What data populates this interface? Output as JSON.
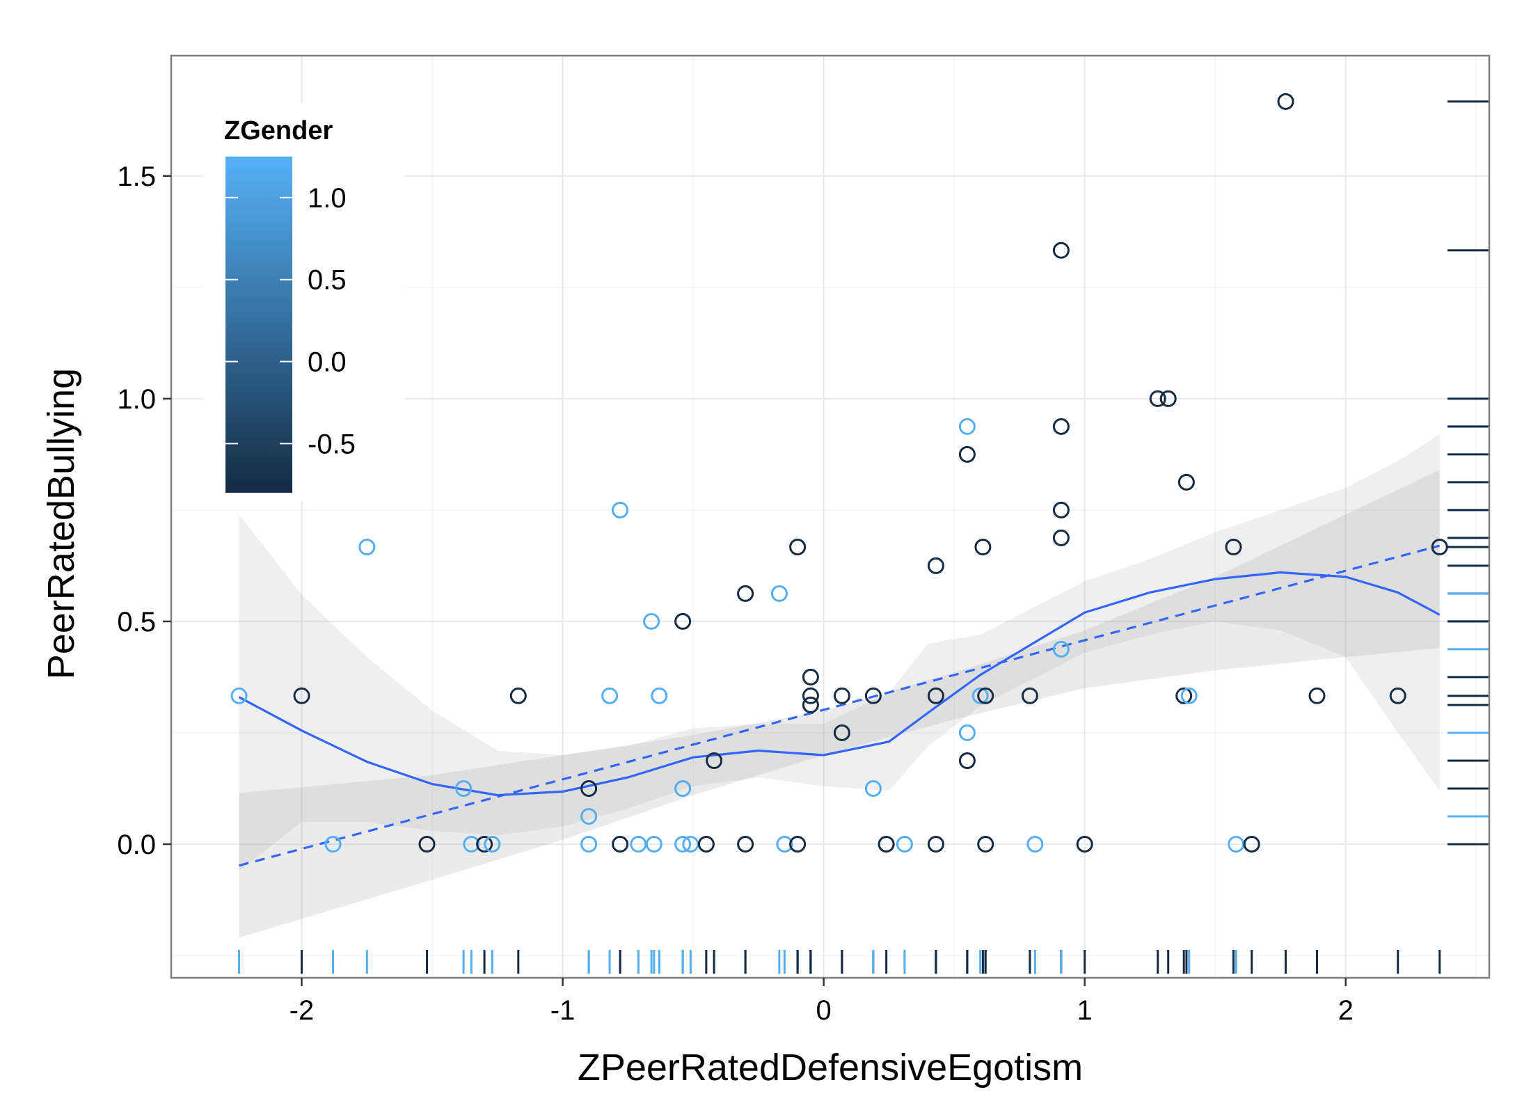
{
  "chart_data": {
    "type": "scatter",
    "title": "",
    "xlabel": "ZPeerRatedDefensiveEgotism",
    "ylabel": "PeerRatedBullying",
    "xlim": [
      -2.5,
      2.55
    ],
    "ylim": [
      -0.3,
      1.77
    ],
    "x_ticks": [
      -2,
      -1,
      0,
      1,
      2
    ],
    "x_tick_labels": [
      "-2",
      "-1",
      "0",
      "1",
      "2"
    ],
    "y_ticks": [
      0.0,
      0.5,
      1.0,
      1.5
    ],
    "y_tick_labels": [
      "0.0",
      "0.5",
      "1.0",
      "1.5"
    ],
    "grid": true,
    "legend": {
      "title": "ZGender",
      "placement": "top-left",
      "min": -0.8,
      "max": 1.25,
      "ticks": [
        1.0,
        0.5,
        0.0,
        -0.5
      ],
      "tick_labels": [
        "1.0",
        "0.5",
        "0.0",
        "-0.5"
      ],
      "color_low": "#132b43",
      "color_high": "#56b1f7"
    },
    "colors": {
      "panel_border": "#7f7f7f",
      "grid_major": "#e8e8e8",
      "grid_minor": "#f4f4f4",
      "smooth_line": "#3366ff",
      "ribbon": "#999999"
    },
    "points": [
      {
        "x": -2.24,
        "y": 0.333,
        "g": 1.2
      },
      {
        "x": -2.0,
        "y": 0.333,
        "g": -0.8
      },
      {
        "x": -1.75,
        "y": 0.667,
        "g": 1.2
      },
      {
        "x": -1.88,
        "y": 0.0,
        "g": 1.2
      },
      {
        "x": -1.52,
        "y": 0.0,
        "g": -0.8
      },
      {
        "x": -1.38,
        "y": 0.125,
        "g": 1.2
      },
      {
        "x": -1.35,
        "y": 0.0,
        "g": 1.2
      },
      {
        "x": -1.3,
        "y": 0.0,
        "g": -0.8
      },
      {
        "x": -1.27,
        "y": 0.0,
        "g": 1.2
      },
      {
        "x": -1.17,
        "y": 0.333,
        "g": -0.8
      },
      {
        "x": -0.9,
        "y": 0.125,
        "g": -0.8
      },
      {
        "x": -0.9,
        "y": 0.0625,
        "g": 1.2
      },
      {
        "x": -0.9,
        "y": 0.0,
        "g": 1.2
      },
      {
        "x": -0.78,
        "y": 0.75,
        "g": 1.2
      },
      {
        "x": -0.78,
        "y": 0.0,
        "g": -0.8
      },
      {
        "x": -0.82,
        "y": 0.333,
        "g": 1.2
      },
      {
        "x": -0.71,
        "y": 0.0,
        "g": 1.2
      },
      {
        "x": -0.66,
        "y": 0.5,
        "g": 1.2
      },
      {
        "x": -0.65,
        "y": 0.0,
        "g": 1.2
      },
      {
        "x": -0.63,
        "y": 0.333,
        "g": 1.2
      },
      {
        "x": -0.54,
        "y": 0.5,
        "g": -0.8
      },
      {
        "x": -0.54,
        "y": 0.125,
        "g": 1.2
      },
      {
        "x": -0.54,
        "y": 0.0,
        "g": 1.2
      },
      {
        "x": -0.51,
        "y": 0.0,
        "g": 1.2
      },
      {
        "x": -0.45,
        "y": 0.0,
        "g": -0.8
      },
      {
        "x": -0.42,
        "y": 0.1875,
        "g": -0.8
      },
      {
        "x": -0.3,
        "y": 0.5625,
        "g": -0.8
      },
      {
        "x": -0.3,
        "y": 0.0,
        "g": -0.8
      },
      {
        "x": -0.17,
        "y": 0.5625,
        "g": 1.2
      },
      {
        "x": -0.15,
        "y": 0.0,
        "g": 1.2
      },
      {
        "x": -0.1,
        "y": 0.667,
        "g": -0.8
      },
      {
        "x": -0.1,
        "y": 0.0,
        "g": -0.8
      },
      {
        "x": -0.05,
        "y": 0.375,
        "g": -0.8
      },
      {
        "x": -0.05,
        "y": 0.333,
        "g": -0.8
      },
      {
        "x": -0.05,
        "y": 0.3125,
        "g": -0.8
      },
      {
        "x": 0.07,
        "y": 0.333,
        "g": -0.8
      },
      {
        "x": 0.07,
        "y": 0.25,
        "g": -0.8
      },
      {
        "x": 0.19,
        "y": 0.333,
        "g": -0.8
      },
      {
        "x": 0.19,
        "y": 0.125,
        "g": 1.2
      },
      {
        "x": 0.24,
        "y": 0.0,
        "g": -0.8
      },
      {
        "x": 0.31,
        "y": 0.0,
        "g": 1.2
      },
      {
        "x": 0.43,
        "y": 0.625,
        "g": -0.8
      },
      {
        "x": 0.43,
        "y": 0.333,
        "g": -0.8
      },
      {
        "x": 0.43,
        "y": 0.0,
        "g": -0.8
      },
      {
        "x": 0.55,
        "y": 0.9375,
        "g": 1.2
      },
      {
        "x": 0.55,
        "y": 0.875,
        "g": -0.8
      },
      {
        "x": 0.55,
        "y": 0.25,
        "g": 1.2
      },
      {
        "x": 0.55,
        "y": 0.1875,
        "g": -0.8
      },
      {
        "x": 0.6,
        "y": 0.333,
        "g": 1.2
      },
      {
        "x": 0.61,
        "y": 0.667,
        "g": -0.8
      },
      {
        "x": 0.62,
        "y": 0.333,
        "g": -0.8
      },
      {
        "x": 0.62,
        "y": 0.0,
        "g": -0.8
      },
      {
        "x": 0.79,
        "y": 0.333,
        "g": -0.8
      },
      {
        "x": 0.81,
        "y": 0.0,
        "g": 1.2
      },
      {
        "x": 0.91,
        "y": 1.333,
        "g": -0.8
      },
      {
        "x": 0.91,
        "y": 0.9375,
        "g": -0.8
      },
      {
        "x": 0.91,
        "y": 0.75,
        "g": -0.8
      },
      {
        "x": 0.91,
        "y": 0.6875,
        "g": -0.8
      },
      {
        "x": 0.91,
        "y": 0.4375,
        "g": 1.2
      },
      {
        "x": 1.0,
        "y": 0.0,
        "g": -0.8
      },
      {
        "x": 1.28,
        "y": 1.0,
        "g": -0.8
      },
      {
        "x": 1.32,
        "y": 1.0,
        "g": -0.8
      },
      {
        "x": 1.38,
        "y": 0.333,
        "g": -0.8
      },
      {
        "x": 1.39,
        "y": 0.8125,
        "g": -0.8
      },
      {
        "x": 1.4,
        "y": 0.333,
        "g": 1.2
      },
      {
        "x": 1.57,
        "y": 0.667,
        "g": -0.8
      },
      {
        "x": 1.58,
        "y": 0.0,
        "g": 1.2
      },
      {
        "x": 1.64,
        "y": 0.0,
        "g": -0.8
      },
      {
        "x": 1.77,
        "y": 1.667,
        "g": -0.8
      },
      {
        "x": 1.89,
        "y": 0.333,
        "g": -0.8
      },
      {
        "x": 2.2,
        "y": 0.333,
        "g": -0.8
      },
      {
        "x": 2.36,
        "y": 0.667,
        "g": -0.8
      }
    ],
    "linear_fit": {
      "x": [
        -2.24,
        2.36
      ],
      "y": [
        -0.048,
        0.67
      ]
    },
    "linear_band": {
      "x": [
        -2.24,
        -1.5,
        -1.0,
        -0.5,
        0.0,
        0.5,
        1.0,
        1.5,
        2.0,
        2.36
      ],
      "lower": [
        -0.21,
        -0.08,
        0.01,
        0.11,
        0.2,
        0.28,
        0.35,
        0.39,
        0.42,
        0.44
      ],
      "upper": [
        0.115,
        0.155,
        0.2,
        0.245,
        0.3,
        0.385,
        0.48,
        0.6,
        0.74,
        0.84
      ]
    },
    "loess_fit": {
      "x": [
        -2.24,
        -2.0,
        -1.75,
        -1.5,
        -1.25,
        -1.0,
        -0.75,
        -0.5,
        -0.25,
        0.0,
        0.25,
        0.4,
        0.6,
        0.8,
        1.0,
        1.25,
        1.5,
        1.75,
        2.0,
        2.2,
        2.36
      ],
      "y": [
        0.33,
        0.255,
        0.185,
        0.135,
        0.11,
        0.118,
        0.15,
        0.195,
        0.21,
        0.2,
        0.23,
        0.295,
        0.38,
        0.45,
        0.52,
        0.565,
        0.595,
        0.61,
        0.6,
        0.565,
        0.515
      ]
    },
    "loess_band": {
      "x": [
        -2.24,
        -2.0,
        -1.75,
        -1.5,
        -1.25,
        -1.0,
        -0.75,
        -0.5,
        -0.25,
        0.0,
        0.25,
        0.4,
        0.6,
        0.8,
        1.0,
        1.25,
        1.5,
        1.75,
        2.0,
        2.2,
        2.36
      ],
      "lower": [
        -0.06,
        0.05,
        0.05,
        0.03,
        0.02,
        0.04,
        0.08,
        0.13,
        0.15,
        0.13,
        0.12,
        0.22,
        0.31,
        0.37,
        0.43,
        0.47,
        0.5,
        0.48,
        0.42,
        0.25,
        0.12
      ],
      "upper": [
        0.74,
        0.56,
        0.42,
        0.3,
        0.21,
        0.2,
        0.22,
        0.26,
        0.27,
        0.27,
        0.34,
        0.45,
        0.47,
        0.53,
        0.59,
        0.64,
        0.7,
        0.75,
        0.8,
        0.86,
        0.92
      ]
    }
  }
}
